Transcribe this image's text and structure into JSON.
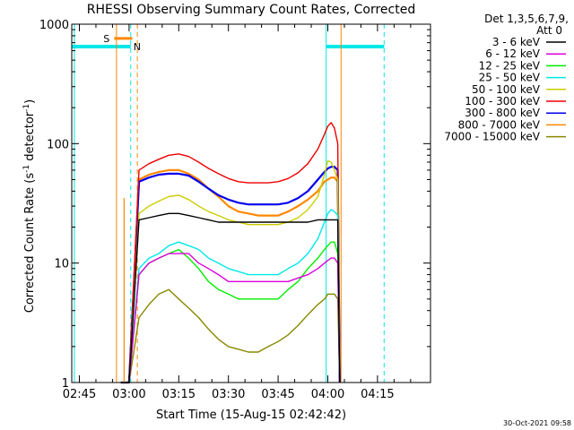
{
  "chart_data": {
    "type": "line",
    "title": "RHESSI Observing Summary Count Rates, Corrected",
    "xlabel": "Start Time (15-Aug-15 02:42:42)",
    "ylabel": "Corrected Count Rate (s",
    "ylabel_sup": "-1",
    "ylabel_tail": " detector",
    "ylabel_close": ")",
    "yscale": "log",
    "ylim": [
      1,
      1000
    ],
    "xlim_min": [
      162.7,
      271.0
    ],
    "x_unit": "minutes after 00:00 UT",
    "x_ticks": [
      {
        "value": 165,
        "label": "02:45"
      },
      {
        "value": 180,
        "label": "03:00"
      },
      {
        "value": 195,
        "label": "03:15"
      },
      {
        "value": 210,
        "label": "03:30"
      },
      {
        "value": 225,
        "label": "03:45"
      },
      {
        "value": 240,
        "label": "04:00"
      },
      {
        "value": 255,
        "label": "04:15"
      }
    ],
    "y_ticks": [
      {
        "value": 1,
        "label": "1"
      },
      {
        "value": 10,
        "label": "10"
      },
      {
        "value": 100,
        "label": "100"
      },
      {
        "value": 1000,
        "label": "1000"
      }
    ],
    "legend_header": [
      "Det 1,3,5,6,7,9,",
      "Att 0"
    ],
    "legend_position": "top-right",
    "x": [
      177.5,
      180,
      183,
      186,
      189,
      192,
      195,
      198,
      201,
      204,
      207,
      210,
      213,
      216,
      219,
      222,
      225,
      228,
      231,
      234,
      237,
      239,
      240,
      241,
      242,
      243,
      243.6
    ],
    "series": [
      {
        "name": "3 - 6 keV",
        "color": "#000000",
        "values": [
          1,
          1,
          23,
          24,
          25,
          26,
          26,
          25,
          24,
          23,
          22,
          22,
          22,
          22,
          22,
          22,
          22,
          22,
          22,
          22,
          23,
          23,
          23,
          23,
          23,
          23,
          1
        ]
      },
      {
        "name": "6 - 12 keV",
        "color": "#dd00dd",
        "values": [
          1,
          1,
          8,
          10,
          11,
          12,
          12,
          12,
          10,
          9,
          8,
          7,
          7,
          7,
          7,
          7,
          7,
          7,
          7.5,
          8,
          9,
          10,
          10.5,
          11,
          11,
          10,
          1
        ]
      },
      {
        "name": "12 - 25 keV",
        "color": "#00ee00",
        "values": [
          1,
          1,
          8,
          10,
          11,
          12,
          13,
          11,
          9,
          7,
          6,
          5.5,
          5,
          5,
          5,
          5,
          5,
          6,
          7,
          9,
          11,
          13,
          14,
          15,
          15,
          12,
          1
        ]
      },
      {
        "name": "25 - 50 keV",
        "color": "#00e8e8",
        "values": [
          1,
          1,
          9,
          11,
          12,
          14,
          15,
          14,
          13,
          11,
          10,
          9,
          8.5,
          8,
          8,
          8,
          8,
          9,
          10,
          12,
          16,
          22,
          26,
          28,
          27,
          25,
          1
        ]
      },
      {
        "name": "50 - 100 keV",
        "color": "#cccc00",
        "values": [
          1,
          1,
          26,
          30,
          33,
          36,
          37,
          34,
          30,
          27,
          25,
          23,
          22,
          21,
          21,
          21,
          21,
          22,
          24,
          28,
          36,
          55,
          72,
          70,
          60,
          50,
          1
        ]
      },
      {
        "name": "100 - 300 keV",
        "color": "#ee0000",
        "values": [
          1,
          1,
          60,
          68,
          74,
          80,
          82,
          78,
          70,
          62,
          56,
          51,
          48,
          47,
          47,
          47,
          48,
          51,
          57,
          68,
          90,
          120,
          140,
          150,
          135,
          100,
          1
        ]
      },
      {
        "name": "300 - 800 keV",
        "color": "#0000ee",
        "values": [
          1,
          1,
          48,
          52,
          55,
          56,
          56,
          54,
          48,
          42,
          37,
          34,
          32,
          31,
          31,
          31,
          31,
          32,
          35,
          40,
          50,
          58,
          62,
          64,
          64,
          60,
          1
        ]
      },
      {
        "name": "800 - 7000 keV",
        "color": "#ff8800",
        "values": [
          1,
          1,
          50,
          55,
          58,
          60,
          60,
          56,
          50,
          42,
          36,
          30,
          27,
          26,
          25,
          25,
          25,
          27,
          30,
          34,
          40,
          48,
          50,
          52,
          52,
          48,
          1
        ]
      },
      {
        "name": "7000 - 15000 keV",
        "color": "#888800",
        "values": [
          1,
          1,
          3.5,
          4.5,
          5.5,
          6,
          5,
          4.2,
          3.5,
          2.8,
          2.3,
          2,
          1.9,
          1.8,
          1.8,
          2,
          2.2,
          2.5,
          3,
          3.7,
          4.5,
          5,
          5.5,
          5.5,
          5.5,
          5,
          1
        ]
      }
    ],
    "spike_series_index": 7,
    "spike_x": 178.5,
    "spike_y": 35,
    "attenuator": {
      "state_label": "S",
      "x_start": 175.5,
      "x_end": 181.0,
      "level": 760,
      "color": "#ff8800",
      "dashed_x": [
        182.5
      ]
    },
    "night_bars": {
      "label": "N",
      "color": "#00e8e8",
      "level": 650,
      "intervals": [
        [
          162.7,
          180.5
        ],
        [
          239.5,
          257.0
        ]
      ],
      "solid_x": [
        163.5,
        239.5
      ],
      "dashed_x": [
        180.5,
        257.0
      ]
    },
    "flare_window": {
      "color": "#ff8800",
      "solid_x": [
        176.2,
        244.0
      ]
    },
    "timestamp": "30-Oct-2021 09:58"
  }
}
